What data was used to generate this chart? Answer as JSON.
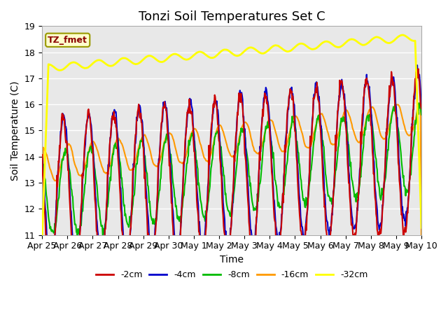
{
  "title": "Tonzi Soil Temperatures Set C",
  "xlabel": "Time",
  "ylabel": "Soil Temperature (C)",
  "ylim": [
    11.0,
    19.0
  ],
  "yticks": [
    11.0,
    12.0,
    13.0,
    14.0,
    15.0,
    16.0,
    17.0,
    18.0,
    19.0
  ],
  "background_color": "#e8e8e8",
  "grid_color": "#ffffff",
  "legend_label": "TZ_fmet",
  "series_colors": [
    "#cc0000",
    "#0000cc",
    "#00bb00",
    "#ff9900",
    "#ffff00"
  ],
  "series_names": [
    "-2cm",
    "-4cm",
    "-8cm",
    "-16cm",
    "-32cm"
  ],
  "series_linewidths": [
    1.5,
    1.5,
    1.5,
    1.5,
    2.0
  ],
  "xtick_labels": [
    "Apr 25",
    "Apr 26",
    "Apr 27",
    "Apr 28",
    "Apr 29",
    "Apr 30",
    "May 1",
    "May 2",
    "May 3",
    "May 4",
    "May 5",
    "May 6",
    "May 7",
    "May 8",
    "May 9",
    "May 10"
  ],
  "title_fontsize": 13,
  "axis_fontsize": 10,
  "tick_fontsize": 9,
  "legend_fontsize": 9
}
